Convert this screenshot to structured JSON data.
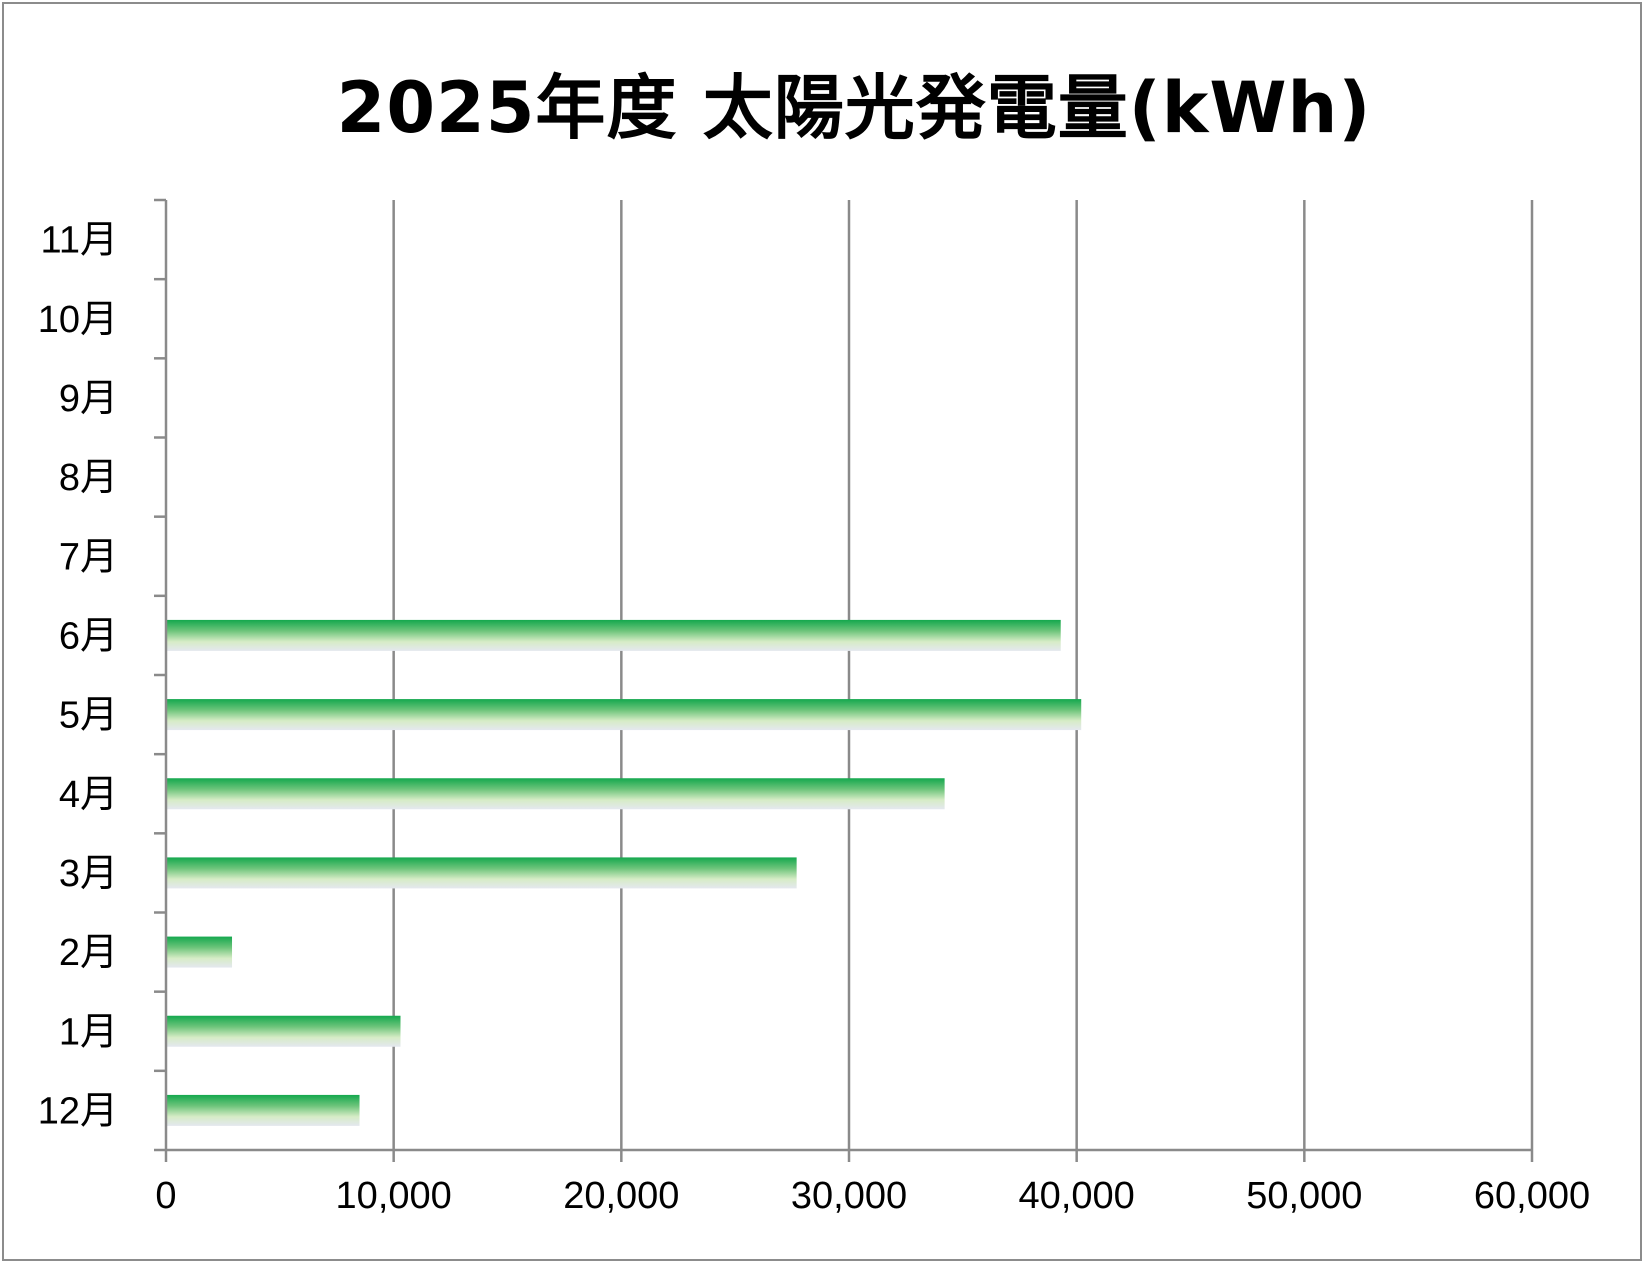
{
  "chart_data": {
    "type": "bar",
    "orientation": "horizontal",
    "title": "2025年度 太陽光発電量(kWh)",
    "categories": [
      "12月",
      "1月",
      "2月",
      "3月",
      "4月",
      "5月",
      "6月",
      "7月",
      "8月",
      "9月",
      "10月",
      "11月"
    ],
    "values": [
      8500,
      10300,
      2900,
      27700,
      34200,
      40200,
      39300,
      null,
      null,
      null,
      null,
      null
    ],
    "xlim": [
      0,
      60000
    ],
    "xticks": [
      "0",
      "10,000",
      "20,000",
      "30,000",
      "40,000",
      "50,000",
      "60,000"
    ],
    "grid": "vertical",
    "legend": "none",
    "bar_color": "#1aaa55",
    "xlabel": "",
    "ylabel": ""
  }
}
